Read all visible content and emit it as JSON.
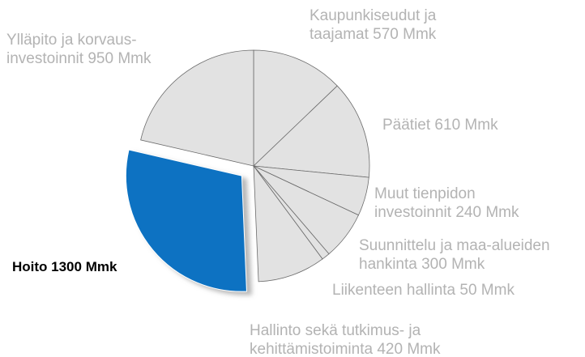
{
  "chart_data": {
    "type": "pie",
    "categories": [
      "Kaupunkiseudut ja\ntaajamat 570 Mmk",
      "Päätiet 610 Mmk",
      "Muut tienpidon\n investoinnit 240 Mmk",
      "Suunnittelu ja maa-alueiden\nhankinta 300 Mmk",
      "Liikenteen hallinta 50 Mmk",
      "Hallinto sekä tutkimus- ja\nkehittämistoiminta 420 Mmk",
      "Hoito 1300 Mmk",
      "Ylläpito ja korvaus-\ninvestoinnit 950 Mmk"
    ],
    "values": [
      570,
      610,
      240,
      300,
      50,
      420,
      1300,
      950
    ],
    "colors": [
      "#e2e2e2",
      "#e2e2e2",
      "#e2e2e2",
      "#e2e2e2",
      "#e2e2e2",
      "#e2e2e2",
      "#0a72c2",
      "#e2e2e2"
    ]
  }
}
